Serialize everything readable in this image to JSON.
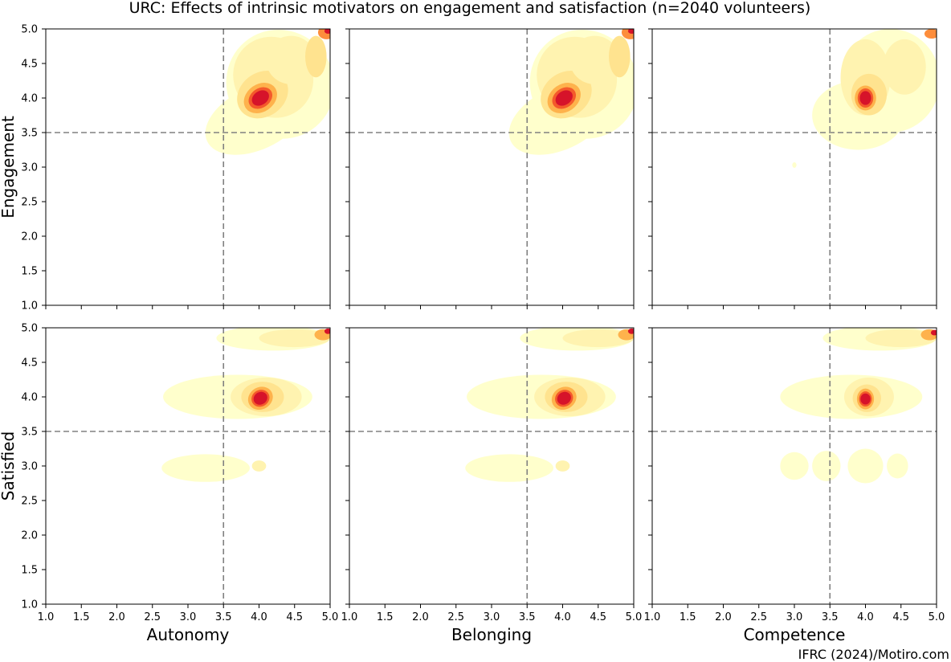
{
  "chart_data": {
    "type": "kde-contour-grid",
    "title": "URC: Effects of intrinsic motivators on engagement and satisfaction (n=2040 volunteers)",
    "source": "IFRC (2024)/Motiro.com",
    "columns": [
      "Autonomy",
      "Belonging",
      "Competence"
    ],
    "rows": [
      "Engagement",
      "Satisfied"
    ],
    "xlim": [
      1.0,
      5.0
    ],
    "ylim": [
      1.0,
      5.0
    ],
    "ticks": [
      "1.0",
      "1.5",
      "2.0",
      "2.5",
      "3.0",
      "3.5",
      "4.0",
      "4.5",
      "5.0"
    ],
    "reference_lines": {
      "x": 3.5,
      "y": 3.5
    },
    "colormap": [
      "#ffffcc",
      "#fff3b0",
      "#ffe38f",
      "#fed06e",
      "#feb24c",
      "#fd8d3c",
      "#f45a2b",
      "#d6132a"
    ],
    "panels": [
      {
        "row": "Engagement",
        "col": "Autonomy",
        "peak": [
          4.02,
          4.0
        ],
        "corner_peak": [
          4.95,
          4.97
        ],
        "region": {
          "x": [
            2.6,
            5.0
          ],
          "y": [
            3.1,
            5.0
          ]
        }
      },
      {
        "row": "Engagement",
        "col": "Belonging",
        "peak": [
          4.0,
          4.0
        ],
        "corner_peak": [
          4.95,
          4.97
        ],
        "region": {
          "x": [
            2.9,
            5.0
          ],
          "y": [
            2.95,
            5.0
          ]
        }
      },
      {
        "row": "Engagement",
        "col": "Competence",
        "peak": [
          4.0,
          4.0
        ],
        "corner_peak": [
          4.95,
          4.93
        ],
        "region": {
          "x": [
            2.8,
            5.0
          ],
          "y": [
            3.0,
            5.0
          ]
        }
      },
      {
        "row": "Satisfied",
        "col": "Autonomy",
        "peak": [
          4.02,
          3.97
        ],
        "corner_peak": [
          4.95,
          4.95
        ],
        "clusters_y": [
          3.0,
          4.0,
          4.85
        ],
        "region": {
          "x": [
            2.6,
            5.0
          ],
          "y": [
            2.75,
            5.0
          ]
        }
      },
      {
        "row": "Satisfied",
        "col": "Belonging",
        "peak": [
          4.0,
          4.0
        ],
        "corner_peak": [
          4.95,
          4.95
        ],
        "clusters_y": [
          3.0,
          4.0,
          4.85
        ],
        "region": {
          "x": [
            2.5,
            5.0
          ],
          "y": [
            2.75,
            5.0
          ]
        }
      },
      {
        "row": "Satisfied",
        "col": "Competence",
        "peak": [
          4.0,
          3.97
        ],
        "corner_peak": [
          4.95,
          4.93
        ],
        "clusters_y": [
          2.95,
          4.0,
          4.85
        ],
        "region": {
          "x": [
            2.8,
            5.0
          ],
          "y": [
            2.75,
            5.0
          ]
        }
      }
    ]
  }
}
